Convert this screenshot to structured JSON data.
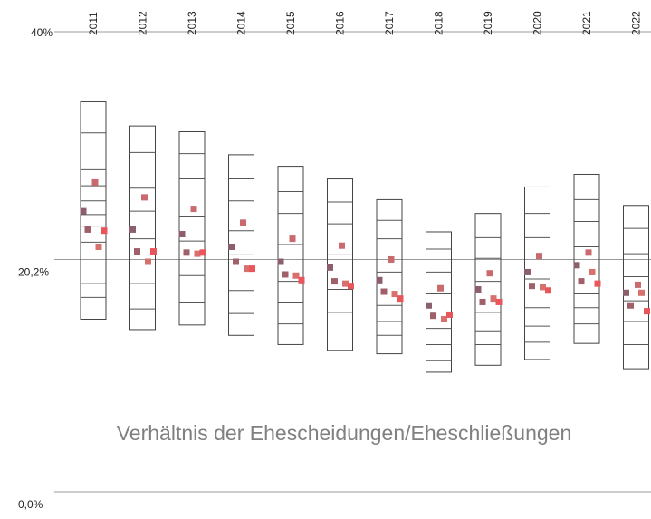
{
  "chart_data": {
    "type": "range-dots",
    "title": "Verhältnis der Ehescheidungen/Eheschließungen",
    "categories": [
      "2011",
      "2012",
      "2013",
      "2014",
      "2015",
      "2016",
      "2017",
      "2018",
      "2019",
      "2020",
      "2021",
      "2022"
    ],
    "ranges": [
      [
        15.0,
        33.9
      ],
      [
        14.1,
        31.8
      ],
      [
        14.5,
        31.3
      ],
      [
        13.6,
        29.3
      ],
      [
        12.8,
        28.3
      ],
      [
        12.3,
        27.2
      ],
      [
        12.0,
        25.4
      ],
      [
        10.4,
        22.6
      ],
      [
        11.0,
        24.2
      ],
      [
        11.5,
        26.5
      ],
      [
        12.9,
        27.6
      ],
      [
        10.7,
        24.9
      ]
    ],
    "levels": [
      [
        31.2,
        28.0,
        26.6,
        25.3,
        24.1,
        23.1,
        21.7,
        18.1,
        16.9
      ],
      [
        29.5,
        26.4,
        24.4,
        22.0,
        18.1,
        15.9
      ],
      [
        29.4,
        27.2,
        23.9,
        21.8,
        18.8,
        16.5
      ],
      [
        27.2,
        25.3,
        22.7,
        20.6,
        17.5,
        15.5
      ],
      [
        26.1,
        24.2,
        21.5,
        18.3,
        16.5,
        14.6
      ],
      [
        25.2,
        23.3,
        20.6,
        17.6,
        15.6,
        13.9
      ],
      [
        23.6,
        22.0,
        19.1,
        16.2,
        14.8,
        13.6
      ],
      [
        21.1,
        19.1,
        17.2,
        14.2,
        12.8,
        11.4
      ],
      [
        22.1,
        20.3,
        18.3,
        15.6,
        14.0,
        12.8
      ],
      [
        24.2,
        22.1,
        18.5,
        16.0,
        14.4,
        13.0
      ],
      [
        25.4,
        23.5,
        21.3,
        17.2,
        16.0,
        14.6
      ],
      [
        22.9,
        20.7,
        18.7,
        16.6,
        14.8,
        12.8
      ]
    ],
    "points": [
      [
        24.4,
        22.8,
        26.9,
        21.3,
        22.7
      ],
      [
        22.8,
        20.9,
        25.6,
        20.0,
        20.9
      ],
      [
        22.4,
        20.8,
        24.6,
        20.7,
        20.8
      ],
      [
        21.3,
        20.0,
        23.4,
        19.4,
        19.4
      ],
      [
        20.0,
        18.9,
        22.0,
        18.8,
        18.4
      ],
      [
        19.5,
        18.3,
        21.4,
        18.1,
        17.9
      ],
      [
        18.4,
        17.4,
        20.2,
        17.2,
        16.8
      ],
      [
        16.2,
        15.3,
        17.7,
        15.0,
        15.4
      ],
      [
        17.6,
        16.5,
        19.0,
        16.8,
        16.5
      ],
      [
        19.1,
        17.9,
        20.5,
        17.8,
        17.5
      ],
      [
        19.7,
        18.3,
        20.8,
        19.1,
        18.1
      ],
      [
        17.3,
        16.2,
        18.0,
        17.3,
        15.7
      ]
    ],
    "point_colors": [
      "#8b5f6b",
      "#a0606a",
      "#c86a6e",
      "#d8706e",
      "#e8555a"
    ],
    "ylim": [
      0,
      40
    ],
    "yticks": [
      {
        "value": 0,
        "label": "0,0%"
      },
      {
        "value": 20.2,
        "label": "20,2%"
      },
      {
        "value": 40,
        "label": "40%"
      }
    ],
    "grid": true
  }
}
